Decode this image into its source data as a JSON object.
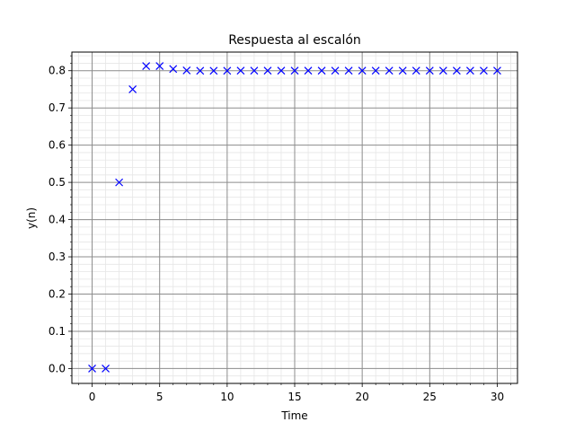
{
  "chart_data": {
    "type": "scatter",
    "title": "Respuesta al escalón",
    "xlabel": "Time",
    "ylabel": "y(n)",
    "xlim": [
      -1.5,
      31.5
    ],
    "ylim": [
      -0.04,
      0.85
    ],
    "xticks": [
      0,
      5,
      10,
      15,
      20,
      25,
      30
    ],
    "xtick_labels": [
      "0",
      "5",
      "10",
      "15",
      "20",
      "25",
      "30"
    ],
    "yticks": [
      0.0,
      0.1,
      0.2,
      0.3,
      0.4,
      0.5,
      0.6,
      0.7,
      0.8
    ],
    "ytick_labels": [
      "0.0",
      "0.1",
      "0.2",
      "0.3",
      "0.4",
      "0.5",
      "0.6",
      "0.7",
      "0.8"
    ],
    "grid": true,
    "minor_grid": true,
    "marker": "x",
    "color": "#0000ff",
    "series": [
      {
        "x": [
          0,
          1,
          2,
          3,
          4,
          5,
          6,
          7,
          8,
          9,
          10,
          11,
          12,
          13,
          14,
          15,
          16,
          17,
          18,
          19,
          20,
          21,
          22,
          23,
          24,
          25,
          26,
          27,
          28,
          29,
          30
        ],
        "values": [
          0.0,
          0.0,
          0.5,
          0.75,
          0.8125,
          0.8125,
          0.8047,
          0.8008,
          0.7998,
          0.7998,
          0.7999,
          0.8,
          0.8,
          0.8,
          0.8,
          0.8,
          0.8,
          0.8,
          0.8,
          0.8,
          0.8,
          0.8,
          0.8,
          0.8,
          0.8,
          0.8,
          0.8,
          0.8,
          0.8,
          0.8,
          0.8
        ]
      }
    ]
  }
}
